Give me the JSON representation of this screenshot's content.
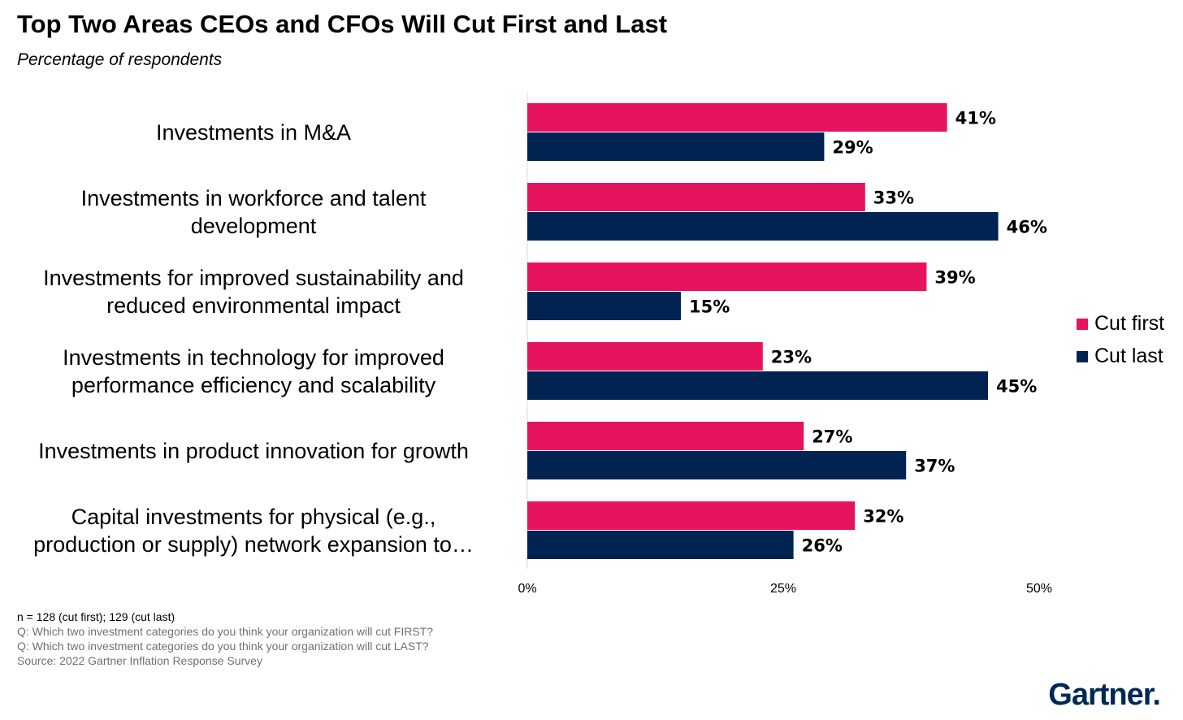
{
  "title": "Top Two Areas CEOs and CFOs Will Cut First and Last",
  "subtitle": "Percentage of respondents",
  "colors": {
    "cut_first": "#e6135f",
    "cut_last": "#002352"
  },
  "chart_data": {
    "type": "bar",
    "orientation": "horizontal",
    "categories": [
      [
        "Investments in M&A"
      ],
      [
        "Investments in workforce and talent",
        "development"
      ],
      [
        "Investments for improved sustainability and",
        "reduced environmental impact"
      ],
      [
        "Investments in technology for improved",
        "performance efficiency and scalability"
      ],
      [
        "Investments in product innovation for growth"
      ],
      [
        "Capital investments for physical (e.g.,",
        "production or supply) network expansion to…"
      ]
    ],
    "series": [
      {
        "name": "Cut first",
        "values": [
          41,
          33,
          39,
          23,
          27,
          32
        ]
      },
      {
        "name": "Cut last",
        "values": [
          29,
          46,
          15,
          45,
          37,
          26
        ]
      }
    ],
    "value_labels": [
      [
        "41%",
        "33%",
        "39%",
        "23%",
        "27%",
        "32%"
      ],
      [
        "29%",
        "46%",
        "15%",
        "45%",
        "37%",
        "26%"
      ]
    ],
    "x_ticks": [
      "0%",
      "25%",
      "50%"
    ],
    "xlim": [
      0,
      50
    ],
    "legend": "right",
    "grid": false
  },
  "footnotes": {
    "n": "n = 128 (cut first); 129 (cut last)",
    "q1": "Q: Which two investment categories do you think your organization will cut FIRST?",
    "q2": "Q: Which two investment categories do you think your organization will cut LAST?",
    "source": "Source: 2022 Gartner Inflation Response Survey"
  },
  "brand": "Gartner."
}
